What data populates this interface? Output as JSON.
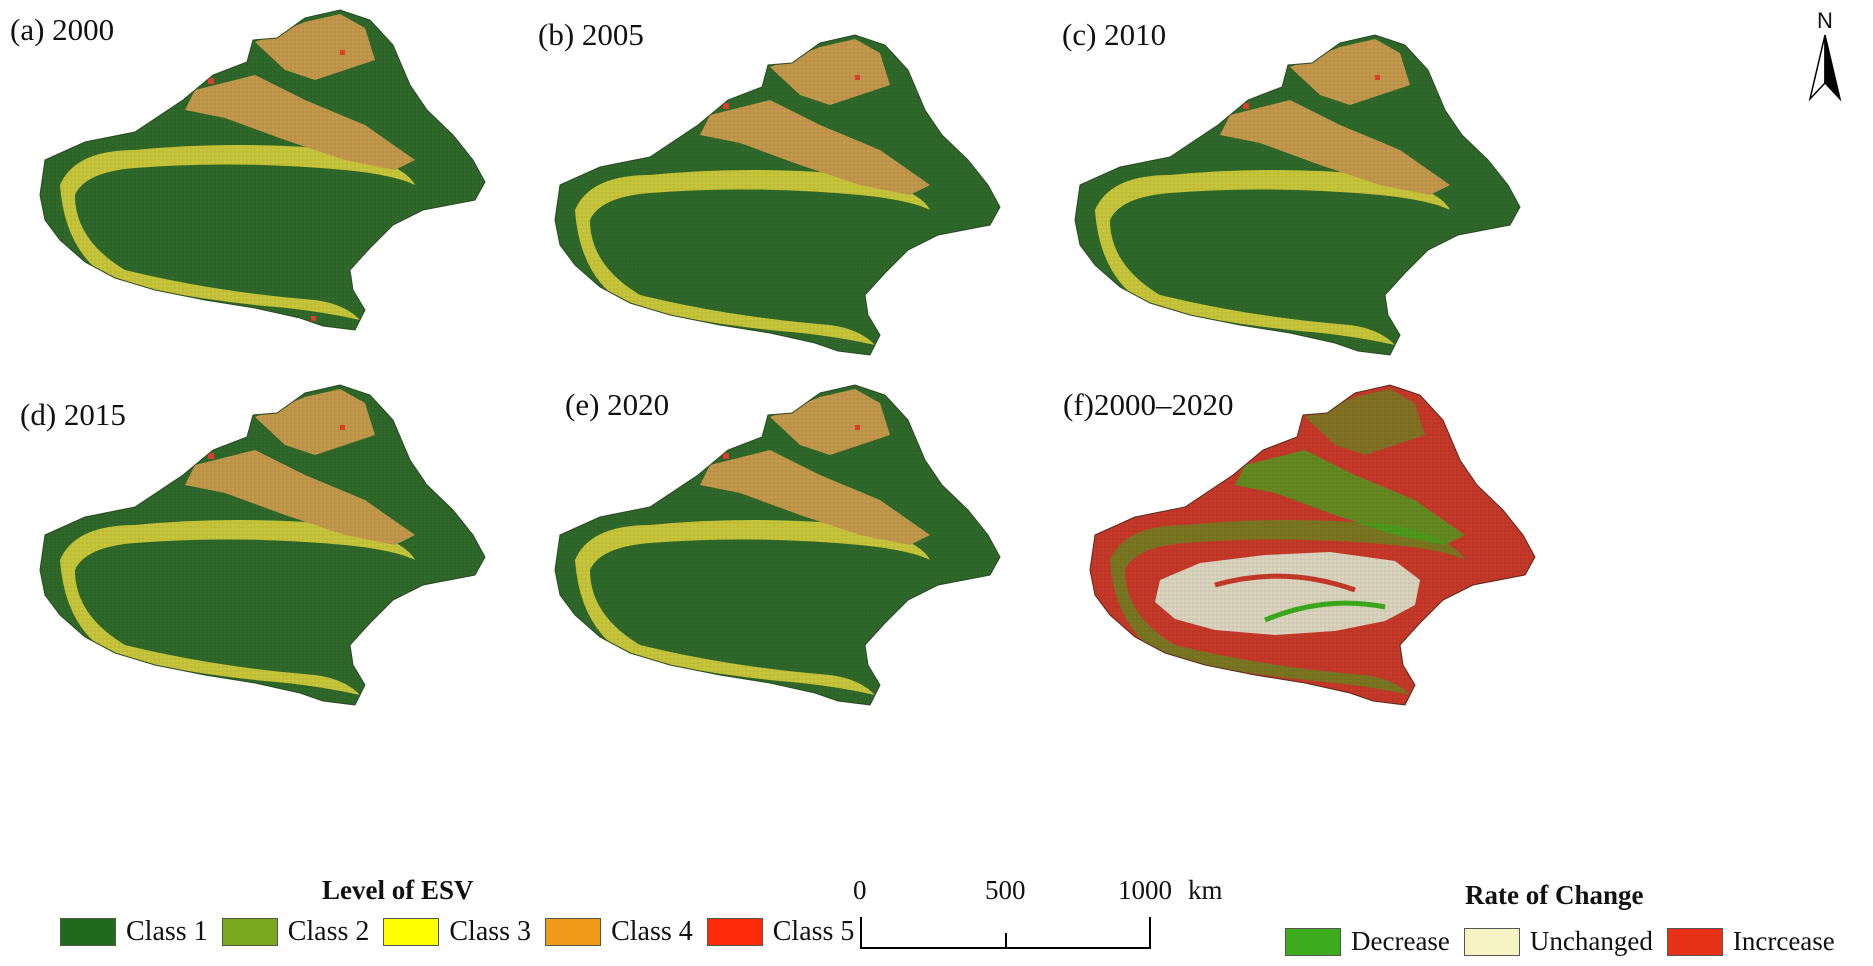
{
  "panels": [
    {
      "label": "(a) 2000"
    },
    {
      "label": "(b) 2005"
    },
    {
      "label": "(c) 2010"
    },
    {
      "label": "(d) 2015"
    },
    {
      "label": "(e) 2020"
    },
    {
      "label": "(f)2000–2020"
    }
  ],
  "north_label": "N",
  "esv_legend": {
    "title": "Level of ESV",
    "items": [
      {
        "label": "Class 1",
        "color": "#1e6b1e"
      },
      {
        "label": "Class 2",
        "color": "#7aa81e"
      },
      {
        "label": "Class 3",
        "color": "#ffff00"
      },
      {
        "label": "Class 4",
        "color": "#f29a1a"
      },
      {
        "label": "Class 5",
        "color": "#ff2a0a"
      }
    ]
  },
  "scale_bar": {
    "ticks": [
      "0",
      "500",
      "1000"
    ],
    "unit": "km"
  },
  "change_legend": {
    "title": "Rate of Change",
    "items": [
      {
        "label": "Decrease",
        "color": "#3cac1c"
      },
      {
        "label": "Unchanged",
        "color": "#f7f3c2"
      },
      {
        "label": "Incrcease",
        "color": "#e83218"
      }
    ]
  },
  "colors": {
    "class1": "#2f6a2a",
    "class4": "#c59a4c",
    "class3": "#c9c83a",
    "class5": "#d8402a",
    "decrease": "#3cac1c",
    "increase": "#c8392a",
    "unchanged": "#ddd6bf"
  }
}
